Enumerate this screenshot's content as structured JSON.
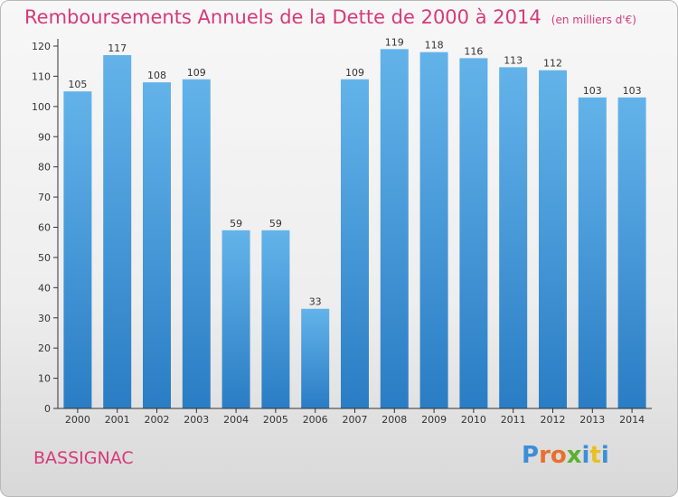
{
  "chart_data": {
    "type": "bar",
    "title": "Remboursements Annuels de la Dette de 2000 à 2014",
    "subtitle": "(en milliers d'€)",
    "categories": [
      "2000",
      "2001",
      "2002",
      "2003",
      "2004",
      "2005",
      "2006",
      "2007",
      "2008",
      "2009",
      "2010",
      "2011",
      "2012",
      "2013",
      "2014"
    ],
    "values": [
      105,
      117,
      108,
      109,
      59,
      59,
      33,
      109,
      119,
      118,
      116,
      113,
      112,
      103,
      103
    ],
    "ylim": [
      0,
      120
    ],
    "yticks": [
      0,
      10,
      20,
      30,
      40,
      50,
      60,
      70,
      80,
      90,
      100,
      110,
      120
    ],
    "grid": false,
    "colors": {
      "bar_top": "#63b3ea",
      "bar_bottom": "#2a7dc4",
      "text": "#d63a78",
      "axis": "#333333"
    }
  },
  "footer": {
    "commune": "BASSIGNAC",
    "logo_letters": [
      "P",
      "r",
      "o",
      "x",
      "i",
      "t",
      "i"
    ],
    "logo_colors": [
      "#3b8fd6",
      "#e8702a",
      "#e8702a",
      "#5cb030",
      "#3b8fd6",
      "#e8c020",
      "#3b8fd6"
    ]
  }
}
